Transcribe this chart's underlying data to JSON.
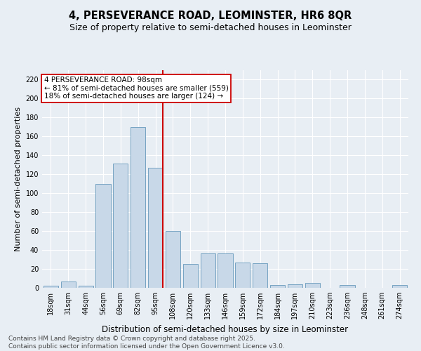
{
  "title": "4, PERSEVERANCE ROAD, LEOMINSTER, HR6 8QR",
  "subtitle": "Size of property relative to semi-detached houses in Leominster",
  "xlabel": "Distribution of semi-detached houses by size in Leominster",
  "ylabel": "Number of semi-detached properties",
  "categories": [
    "18sqm",
    "31sqm",
    "44sqm",
    "56sqm",
    "69sqm",
    "82sqm",
    "95sqm",
    "108sqm",
    "120sqm",
    "133sqm",
    "146sqm",
    "159sqm",
    "172sqm",
    "184sqm",
    "197sqm",
    "210sqm",
    "223sqm",
    "236sqm",
    "248sqm",
    "261sqm",
    "274sqm"
  ],
  "values": [
    2,
    7,
    2,
    110,
    131,
    170,
    127,
    60,
    25,
    36,
    36,
    27,
    26,
    3,
    4,
    5,
    0,
    3,
    0,
    0,
    3
  ],
  "bar_color": "#c8d8e8",
  "bar_edge_color": "#6699bb",
  "vline_color": "#cc0000",
  "vline_x_index": 6,
  "annotation_text": "4 PERSEVERANCE ROAD: 98sqm\n← 81% of semi-detached houses are smaller (559)\n18% of semi-detached houses are larger (124) →",
  "annotation_box_color": "#ffffff",
  "annotation_box_edge": "#cc0000",
  "ylim": [
    0,
    230
  ],
  "yticks": [
    0,
    20,
    40,
    60,
    80,
    100,
    120,
    140,
    160,
    180,
    200,
    220
  ],
  "bg_color": "#e8eef4",
  "footer_line1": "Contains HM Land Registry data © Crown copyright and database right 2025.",
  "footer_line2": "Contains public sector information licensed under the Open Government Licence v3.0.",
  "title_fontsize": 10.5,
  "subtitle_fontsize": 9,
  "ylabel_fontsize": 8,
  "xlabel_fontsize": 8.5,
  "tick_fontsize": 7,
  "annotation_fontsize": 7.5,
  "footer_fontsize": 6.5
}
